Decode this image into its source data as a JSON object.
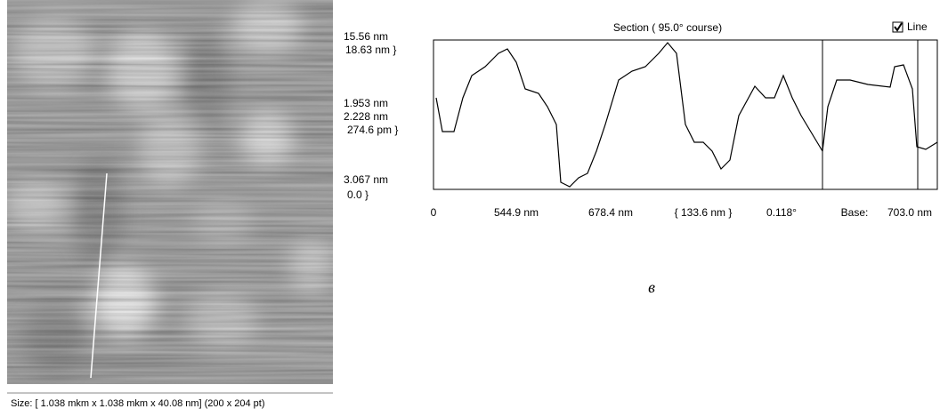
{
  "image": {
    "caption": "Size: [ 1.038 mkm x 1.038 mkm x 40.08 nm] (200 x 204 pt)"
  },
  "section": {
    "title": "Section ( 95.0° course)",
    "checkbox_label": "Line",
    "left_labels": [
      "15.56 nm",
      "18.63 nm }",
      "1.953 nm",
      "2.228 nm",
      "274.6 pm }",
      "3.067 nm",
      "0.0 }"
    ],
    "bottom_labels": [
      "0",
      "544.9 nm",
      "678.4 nm",
      "{ 133.6 nm }",
      "0.118°",
      "Base:",
      "703.0 nm"
    ],
    "panel_letter": "в"
  }
}
